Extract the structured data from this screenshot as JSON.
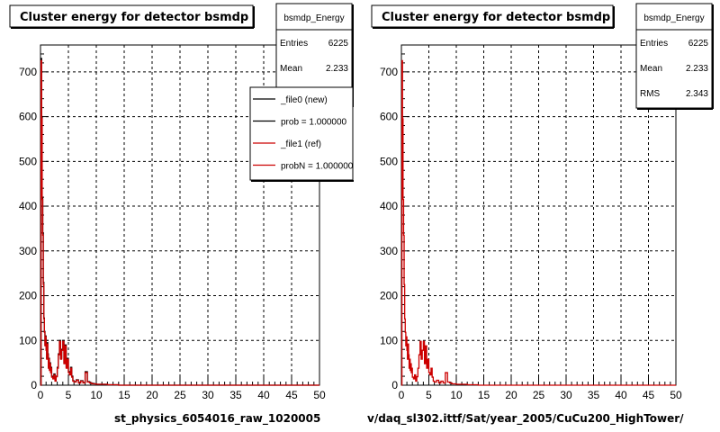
{
  "chart_data": [
    {
      "type": "line",
      "title": "Cluster energy for detector bsmdp",
      "xlabel": "st_physics_6054016_raw_1020005",
      "ylabel": "",
      "xlim": [
        0,
        50
      ],
      "ylim": [
        0,
        760
      ],
      "xticks": [
        "0",
        "5",
        "10",
        "15",
        "20",
        "25",
        "30",
        "35",
        "40",
        "45",
        "50"
      ],
      "yticks": [
        "0",
        "100",
        "200",
        "300",
        "400",
        "500",
        "600",
        "700"
      ],
      "grid": true,
      "stats": {
        "name": "bsmdp_Energy",
        "rows": [
          {
            "label": "Entries",
            "value": "6225"
          },
          {
            "label": "Mean",
            "value": "2.233"
          }
        ]
      },
      "legend": {
        "placement": "top-right",
        "entries": [
          {
            "text": "_file0 (new)",
            "color": "#000000"
          },
          {
            "text": "prob = 1.000000",
            "color": "#000000"
          },
          {
            "text": "_file1 (ref)",
            "color": "#cc0000"
          },
          {
            "text": "probN = 1.000000",
            "color": "#cc0000"
          }
        ]
      },
      "series": [
        {
          "color": "#000000",
          "x": [
            0,
            0.1,
            0.2,
            0.3,
            0.4,
            0.5,
            0.6,
            0.7,
            0.8,
            0.9,
            1.0,
            1.1,
            1.2,
            1.3,
            1.4,
            1.5,
            1.6,
            1.7,
            1.8,
            1.9,
            2.0,
            2.2,
            2.4,
            2.6,
            2.8,
            3.0,
            3.2,
            3.4,
            3.6,
            3.8,
            4.0,
            4.2,
            4.4,
            4.6,
            4.8,
            5.0,
            5.2,
            5.4,
            5.6,
            5.8,
            6.0,
            6.4,
            6.8,
            7.2,
            7.6,
            8.0,
            8.4,
            8.8,
            9.2,
            9.6,
            10.0,
            11,
            12,
            13,
            14,
            15,
            20,
            30,
            40,
            50
          ],
          "y": [
            0,
            730,
            600,
            420,
            340,
            230,
            150,
            120,
            90,
            110,
            80,
            60,
            95,
            70,
            40,
            60,
            35,
            50,
            30,
            40,
            20,
            15,
            25,
            10,
            20,
            40,
            70,
            100,
            60,
            80,
            100,
            50,
            90,
            40,
            60,
            30,
            25,
            40,
            20,
            10,
            8,
            12,
            5,
            10,
            6,
            30,
            8,
            5,
            4,
            3,
            2,
            2,
            1,
            1,
            0,
            0,
            0,
            0,
            0,
            0
          ]
        },
        {
          "color": "#cc0000",
          "x": [
            0,
            0.1,
            0.2,
            0.3,
            0.4,
            0.5,
            0.6,
            0.7,
            0.8,
            0.9,
            1.0,
            1.1,
            1.2,
            1.3,
            1.4,
            1.5,
            1.6,
            1.7,
            1.8,
            1.9,
            2.0,
            2.2,
            2.4,
            2.6,
            2.8,
            3.0,
            3.2,
            3.4,
            3.6,
            3.8,
            4.0,
            4.2,
            4.4,
            4.6,
            4.8,
            5.0,
            5.2,
            5.4,
            5.6,
            5.8,
            6.0,
            6.4,
            6.8,
            7.2,
            7.6,
            8.0,
            8.4,
            8.8,
            9.2,
            9.6,
            10.0,
            11,
            12,
            13,
            14,
            15,
            20,
            30,
            40,
            50
          ],
          "y": [
            0,
            725,
            595,
            415,
            335,
            225,
            148,
            118,
            88,
            108,
            78,
            58,
            92,
            68,
            38,
            58,
            33,
            48,
            28,
            38,
            18,
            14,
            23,
            9,
            19,
            38,
            68,
            98,
            58,
            78,
            98,
            48,
            88,
            38,
            58,
            28,
            23,
            38,
            18,
            9,
            7,
            11,
            5,
            9,
            5,
            28,
            7,
            5,
            3,
            3,
            2,
            2,
            1,
            1,
            0,
            0,
            0,
            0,
            0,
            0
          ]
        }
      ]
    },
    {
      "type": "line",
      "title": "Cluster energy for detector bsmdp",
      "xlabel": "v/daq_sl302.ittf/Sat/year_2005/CuCu200_HighTower/",
      "ylabel": "",
      "xlim": [
        0,
        50
      ],
      "ylim": [
        0,
        760
      ],
      "xticks": [
        "0",
        "5",
        "10",
        "15",
        "20",
        "25",
        "30",
        "35",
        "40",
        "45",
        "50"
      ],
      "yticks": [
        "0",
        "100",
        "200",
        "300",
        "400",
        "500",
        "600",
        "700"
      ],
      "grid": true,
      "stats": {
        "name": "bsmdp_Energy",
        "rows": [
          {
            "label": "Entries",
            "value": "6225"
          },
          {
            "label": "Mean",
            "value": "2.233"
          },
          {
            "label": "RMS",
            "value": "2.343"
          }
        ]
      },
      "series": [
        {
          "color": "#cc0000",
          "x": [
            0,
            0.1,
            0.2,
            0.3,
            0.4,
            0.5,
            0.6,
            0.7,
            0.8,
            0.9,
            1.0,
            1.1,
            1.2,
            1.3,
            1.4,
            1.5,
            1.6,
            1.7,
            1.8,
            1.9,
            2.0,
            2.2,
            2.4,
            2.6,
            2.8,
            3.0,
            3.2,
            3.4,
            3.6,
            3.8,
            4.0,
            4.2,
            4.4,
            4.6,
            4.8,
            5.0,
            5.2,
            5.4,
            5.6,
            5.8,
            6.0,
            6.4,
            6.8,
            7.2,
            7.6,
            8.0,
            8.4,
            8.8,
            9.2,
            9.6,
            10.0,
            11,
            12,
            13,
            14,
            15,
            20,
            30,
            40,
            50
          ],
          "y": [
            0,
            725,
            595,
            415,
            335,
            225,
            148,
            118,
            88,
            108,
            78,
            58,
            92,
            68,
            38,
            58,
            33,
            48,
            28,
            38,
            18,
            14,
            23,
            9,
            19,
            38,
            68,
            98,
            58,
            78,
            98,
            48,
            88,
            38,
            58,
            28,
            23,
            38,
            18,
            9,
            7,
            11,
            5,
            9,
            5,
            28,
            7,
            5,
            3,
            3,
            2,
            2,
            1,
            1,
            0,
            0,
            0,
            0,
            0,
            0
          ]
        }
      ]
    }
  ]
}
